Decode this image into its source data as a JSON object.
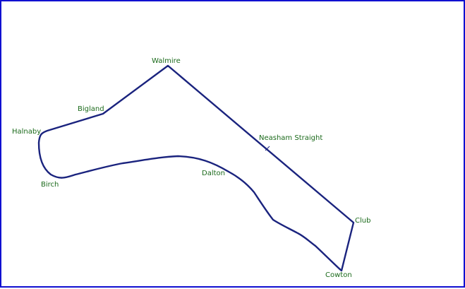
{
  "track": {
    "line_color": "#1a237e",
    "label_color": "#1b6a1b",
    "frame_color": "#1010d0"
  },
  "corners": {
    "walmire": "Walmire",
    "bigland": "Bigland",
    "halnaby": "Halnaby",
    "birch": "Birch",
    "dalton": "Dalton",
    "neasham_straight": "Neasham Straight",
    "club": "Club",
    "cowton": "Cowton"
  }
}
